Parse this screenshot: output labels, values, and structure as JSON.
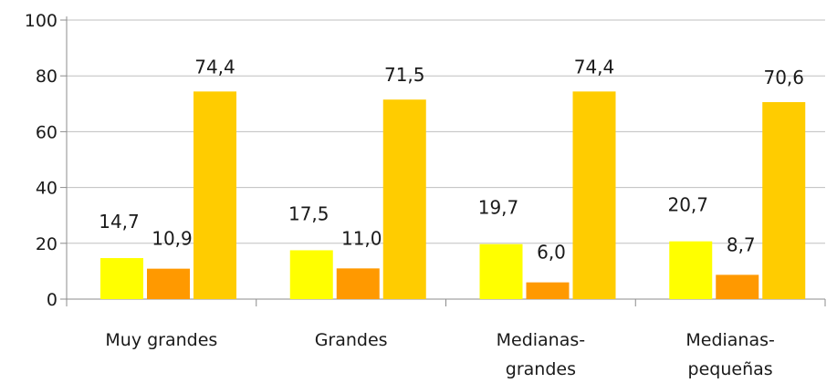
{
  "chart_data": {
    "type": "bar",
    "title": "",
    "xlabel": "",
    "ylabel": "",
    "categories": [
      [
        "Muy grandes"
      ],
      [
        "Grandes"
      ],
      [
        "Medianas-",
        "grandes"
      ],
      [
        "Medianas-",
        "pequeñas"
      ]
    ],
    "series": [
      {
        "values": [
          14.7,
          17.5,
          19.7,
          20.7
        ],
        "labels": [
          "14,7",
          "17,5",
          "19,7",
          "20,7"
        ],
        "color": "#ffff00"
      },
      {
        "values": [
          10.9,
          11.0,
          6.0,
          8.7
        ],
        "labels": [
          "10,9",
          "11,0",
          "6,0",
          "8,7"
        ],
        "color": "#ff9900"
      },
      {
        "values": [
          74.4,
          71.5,
          74.4,
          70.6
        ],
        "labels": [
          "74,4",
          "71,5",
          "74,4",
          "70,6"
        ],
        "color": "#ffcc00"
      }
    ],
    "ylim": [
      0,
      100
    ],
    "yticks": [
      0,
      20,
      40,
      60,
      80,
      100
    ],
    "ytick_labels": [
      "0",
      "20",
      "40",
      "60",
      "80",
      "100"
    ],
    "grid": true,
    "legend": "none"
  }
}
